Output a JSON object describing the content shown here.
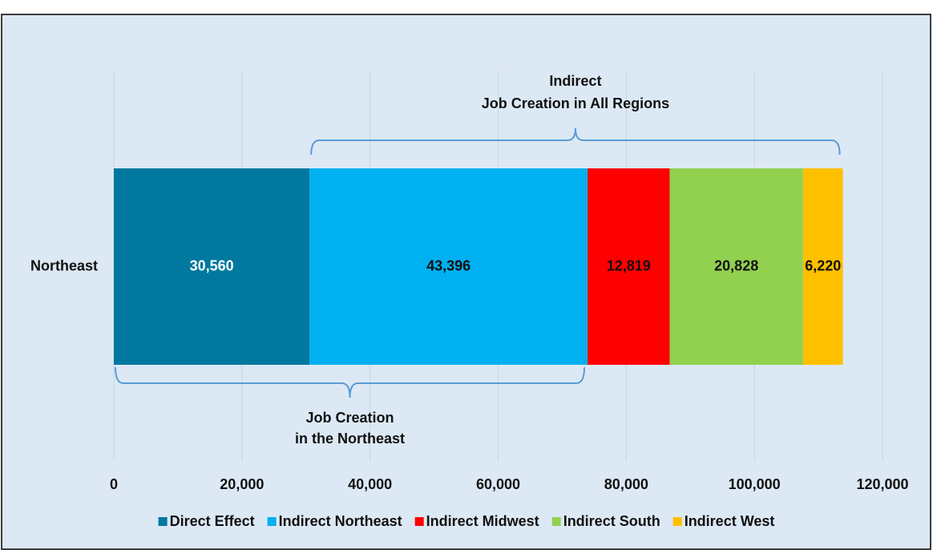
{
  "chart_data": {
    "type": "stacked-barh",
    "categories": [
      "Northeast"
    ],
    "series": [
      {
        "name": "Direct Effect",
        "color": "#00789f",
        "values": [
          30560
        ],
        "value_labels": [
          "30,560"
        ],
        "label_color": "#ffffff"
      },
      {
        "name": "Indirect Northeast",
        "color": "#00b0f0",
        "values": [
          43396
        ],
        "value_labels": [
          "43,396"
        ],
        "label_color": "#111111"
      },
      {
        "name": "Indirect Midwest",
        "color": "#ff0000",
        "values": [
          12819
        ],
        "value_labels": [
          "12,819"
        ],
        "label_color": "#111111"
      },
      {
        "name": "Indirect South",
        "color": "#92d050",
        "values": [
          20828
        ],
        "value_labels": [
          "20,828"
        ],
        "label_color": "#111111"
      },
      {
        "name": "Indirect West",
        "color": "#ffc000",
        "values": [
          6220
        ],
        "value_labels": [
          "6,220"
        ],
        "label_color": "#111111"
      }
    ],
    "xlim": [
      0,
      120000
    ],
    "xticks": [
      0,
      {
        "value": 20000,
        "label": "20,000"
      },
      {
        "value": 40000,
        "label": "40,000"
      },
      {
        "value": 60000,
        "label": "60,000"
      },
      {
        "value": 80000,
        "label": "80,000"
      },
      {
        "value": 100000,
        "label": "100,000"
      },
      {
        "value": 120000,
        "label": "120,000"
      }
    ],
    "grid": true,
    "legend": "bottom",
    "annotations": [
      {
        "lines": [
          "Indirect",
          "Job Creation in All Regions"
        ],
        "from_series": 1,
        "to_series": 4,
        "side": "top"
      },
      {
        "lines": [
          "Job Creation",
          "in the Northeast"
        ],
        "from_series": 0,
        "to_series": 1,
        "side": "bottom"
      }
    ]
  }
}
